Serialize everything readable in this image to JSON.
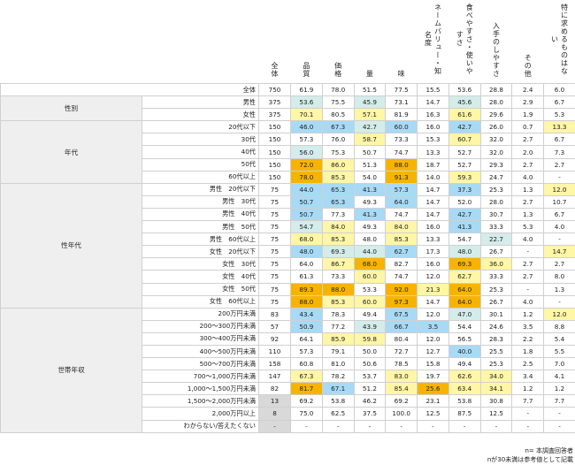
{
  "header": {
    "total_col": "全体",
    "columns": [
      "品質",
      "価格",
      "量",
      "味",
      "ネームバリュー・知名度",
      "食べやすさ・使いやすさ",
      "入手のしやすさ",
      "その他",
      "特に求めるものはない"
    ]
  },
  "legend_colors": {
    "b": "#a8daf5",
    "t": "#d4ecea",
    "y": "#fff6a6",
    "o": "#f6b400"
  },
  "total_row": {
    "label": "全体",
    "n": "750",
    "values": [
      "61.9",
      "78.0",
      "51.5",
      "77.5",
      "15.5",
      "53.6",
      "28.8",
      "2.4",
      "6.0"
    ],
    "hl": [
      "",
      "",
      "",
      "",
      "",
      "",
      "",
      "",
      ""
    ]
  },
  "groups": [
    {
      "name": "性別",
      "rows": [
        {
          "label": "男性",
          "n": "375",
          "values": [
            "53.6",
            "75.5",
            "45.9",
            "73.1",
            "14.7",
            "45.6",
            "28.0",
            "2.9",
            "6.7"
          ],
          "hl": [
            "t",
            "",
            "t",
            "",
            "",
            "t",
            "",
            "",
            ""
          ]
        },
        {
          "label": "女性",
          "n": "375",
          "values": [
            "70.1",
            "80.5",
            "57.1",
            "81.9",
            "16.3",
            "61.6",
            "29.6",
            "1.9",
            "5.3"
          ],
          "hl": [
            "y",
            "",
            "y",
            "",
            "",
            "y",
            "",
            "",
            ""
          ]
        }
      ]
    },
    {
      "name": "年代",
      "rows": [
        {
          "label": "20代以下",
          "n": "150",
          "values": [
            "46.0",
            "67.3",
            "42.7",
            "60.0",
            "16.0",
            "42.7",
            "26.0",
            "0.7",
            "13.3"
          ],
          "hl": [
            "b",
            "b",
            "t",
            "b",
            "",
            "b",
            "",
            "",
            "y"
          ]
        },
        {
          "label": "30代",
          "n": "150",
          "values": [
            "57.3",
            "76.0",
            "58.7",
            "73.3",
            "15.3",
            "60.7",
            "32.0",
            "2.7",
            "6.7"
          ],
          "hl": [
            "",
            "",
            "y",
            "",
            "",
            "y",
            "",
            "",
            ""
          ]
        },
        {
          "label": "40代",
          "n": "150",
          "values": [
            "56.0",
            "75.3",
            "50.7",
            "74.7",
            "13.3",
            "52.7",
            "32.0",
            "2.0",
            "7.3"
          ],
          "hl": [
            "t",
            "",
            "",
            "",
            "",
            "",
            "",
            "",
            ""
          ]
        },
        {
          "label": "50代",
          "n": "150",
          "values": [
            "72.0",
            "86.0",
            "51.3",
            "88.0",
            "18.7",
            "52.7",
            "29.3",
            "2.7",
            "2.7"
          ],
          "hl": [
            "o",
            "y",
            "",
            "o",
            "",
            "",
            "",
            "",
            ""
          ]
        },
        {
          "label": "60代以上",
          "n": "150",
          "values": [
            "78.0",
            "85.3",
            "54.0",
            "91.3",
            "14.0",
            "59.3",
            "24.7",
            "4.0",
            "-"
          ],
          "hl": [
            "o",
            "y",
            "",
            "o",
            "",
            "y",
            "",
            "",
            ""
          ]
        }
      ]
    },
    {
      "name": "性年代",
      "rows": [
        {
          "label": "男性　20代以下",
          "n": "75",
          "values": [
            "44.0",
            "65.3",
            "41.3",
            "57.3",
            "14.7",
            "37.3",
            "25.3",
            "1.3",
            "12.0"
          ],
          "hl": [
            "b",
            "b",
            "b",
            "b",
            "",
            "b",
            "",
            "",
            "y"
          ]
        },
        {
          "label": "男性　30代",
          "n": "75",
          "values": [
            "50.7",
            "65.3",
            "49.3",
            "64.0",
            "14.7",
            "52.0",
            "28.0",
            "2.7",
            "10.7"
          ],
          "hl": [
            "b",
            "b",
            "",
            "b",
            "",
            "",
            "",
            "",
            ""
          ]
        },
        {
          "label": "男性　40代",
          "n": "75",
          "values": [
            "50.7",
            "77.3",
            "41.3",
            "74.7",
            "14.7",
            "42.7",
            "30.7",
            "1.3",
            "6.7"
          ],
          "hl": [
            "b",
            "",
            "b",
            "",
            "",
            "b",
            "",
            "",
            ""
          ]
        },
        {
          "label": "男性　50代",
          "n": "75",
          "values": [
            "54.7",
            "84.0",
            "49.3",
            "84.0",
            "16.0",
            "41.3",
            "33.3",
            "5.3",
            "4.0"
          ],
          "hl": [
            "t",
            "y",
            "",
            "y",
            "",
            "b",
            "",
            "",
            ""
          ]
        },
        {
          "label": "男性　60代以上",
          "n": "75",
          "values": [
            "68.0",
            "85.3",
            "48.0",
            "85.3",
            "13.3",
            "54.7",
            "22.7",
            "4.0",
            "-"
          ],
          "hl": [
            "y",
            "y",
            "",
            "y",
            "",
            "",
            "t",
            "",
            ""
          ]
        },
        {
          "label": "女性　20代以下",
          "n": "75",
          "values": [
            "48.0",
            "69.3",
            "44.0",
            "62.7",
            "17.3",
            "48.0",
            "26.7",
            "-",
            "14.7"
          ],
          "hl": [
            "b",
            "t",
            "t",
            "b",
            "",
            "t",
            "",
            "",
            "y"
          ]
        },
        {
          "label": "女性　30代",
          "n": "75",
          "values": [
            "64.0",
            "86.7",
            "68.0",
            "82.7",
            "16.0",
            "69.3",
            "36.0",
            "2.7",
            "2.7"
          ],
          "hl": [
            "",
            "y",
            "o",
            "",
            "",
            "o",
            "y",
            "",
            ""
          ]
        },
        {
          "label": "女性　40代",
          "n": "75",
          "values": [
            "61.3",
            "73.3",
            "60.0",
            "74.7",
            "12.0",
            "62.7",
            "33.3",
            "2.7",
            "8.0"
          ],
          "hl": [
            "",
            "",
            "y",
            "",
            "",
            "y",
            "",
            "",
            ""
          ]
        },
        {
          "label": "女性　50代",
          "n": "75",
          "values": [
            "89.3",
            "88.0",
            "53.3",
            "92.0",
            "21.3",
            "64.0",
            "25.3",
            "-",
            "1.3"
          ],
          "hl": [
            "o",
            "o",
            "",
            "o",
            "y",
            "o",
            "",
            "",
            ""
          ]
        },
        {
          "label": "女性　60代以上",
          "n": "75",
          "values": [
            "88.0",
            "85.3",
            "60.0",
            "97.3",
            "14.7",
            "64.0",
            "26.7",
            "4.0",
            "-"
          ],
          "hl": [
            "o",
            "y",
            "y",
            "o",
            "",
            "o",
            "",
            "",
            ""
          ]
        }
      ]
    },
    {
      "name": "世帯年収",
      "rows": [
        {
          "label": "200万円未満",
          "n": "83",
          "values": [
            "43.4",
            "78.3",
            "49.4",
            "67.5",
            "12.0",
            "47.0",
            "30.1",
            "1.2",
            "12.0"
          ],
          "hl": [
            "b",
            "",
            "",
            "b",
            "",
            "t",
            "",
            "",
            "y"
          ]
        },
        {
          "label": "200～300万円未満",
          "n": "57",
          "values": [
            "50.9",
            "77.2",
            "43.9",
            "66.7",
            "3.5",
            "54.4",
            "24.6",
            "3.5",
            "8.8"
          ],
          "hl": [
            "b",
            "",
            "t",
            "b",
            "b",
            "",
            "",
            "",
            ""
          ]
        },
        {
          "label": "300～400万円未満",
          "n": "92",
          "values": [
            "64.1",
            "85.9",
            "59.8",
            "80.4",
            "12.0",
            "56.5",
            "28.3",
            "2.2",
            "5.4"
          ],
          "hl": [
            "",
            "y",
            "y",
            "",
            "",
            "",
            "",
            "",
            ""
          ]
        },
        {
          "label": "400～500万円未満",
          "n": "110",
          "values": [
            "57.3",
            "79.1",
            "50.0",
            "72.7",
            "12.7",
            "40.0",
            "25.5",
            "1.8",
            "5.5"
          ],
          "hl": [
            "",
            "",
            "",
            "",
            "",
            "b",
            "",
            "",
            ""
          ]
        },
        {
          "label": "500～700万円未満",
          "n": "158",
          "values": [
            "60.8",
            "81.0",
            "50.6",
            "78.5",
            "15.8",
            "49.4",
            "25.3",
            "2.5",
            "7.0"
          ],
          "hl": [
            "",
            "",
            "",
            "",
            "",
            "",
            "",
            "",
            ""
          ]
        },
        {
          "label": "700～1,000万円未満",
          "n": "147",
          "values": [
            "67.3",
            "78.2",
            "53.7",
            "83.0",
            "19.7",
            "62.6",
            "34.0",
            "3.4",
            "4.1"
          ],
          "hl": [
            "y",
            "",
            "",
            "y",
            "",
            "y",
            "y",
            "",
            ""
          ]
        },
        {
          "label": "1,000～1,500万円未満",
          "n": "82",
          "values": [
            "81.7",
            "67.1",
            "51.2",
            "85.4",
            "25.6",
            "63.4",
            "34.1",
            "1.2",
            "1.2"
          ],
          "hl": [
            "o",
            "b",
            "",
            "y",
            "o",
            "y",
            "y",
            "",
            ""
          ]
        },
        {
          "label": "1,500～2,000万円未満",
          "n": "13",
          "ngray": true,
          "values": [
            "69.2",
            "53.8",
            "46.2",
            "69.2",
            "23.1",
            "53.8",
            "30.8",
            "7.7",
            "7.7"
          ],
          "hl": [
            "",
            "",
            "",
            "",
            "",
            "",
            "",
            "",
            ""
          ]
        },
        {
          "label": "2,000万円以上",
          "n": "8",
          "ngray": true,
          "values": [
            "75.0",
            "62.5",
            "37.5",
            "100.0",
            "12.5",
            "87.5",
            "12.5",
            "-",
            "-"
          ],
          "hl": [
            "",
            "",
            "",
            "",
            "",
            "",
            "",
            "",
            ""
          ]
        },
        {
          "label": "わからない/答えたくない",
          "n": "-",
          "ngray": true,
          "values": [
            "-",
            "-",
            "-",
            "-",
            "-",
            "-",
            "-",
            "-",
            "-"
          ],
          "hl": [
            "",
            "",
            "",
            "",
            "",
            "",
            "",
            "",
            ""
          ]
        }
      ]
    }
  ],
  "notes": [
    "n= 本調査回答者",
    "nが30未満は参考値として記載"
  ]
}
